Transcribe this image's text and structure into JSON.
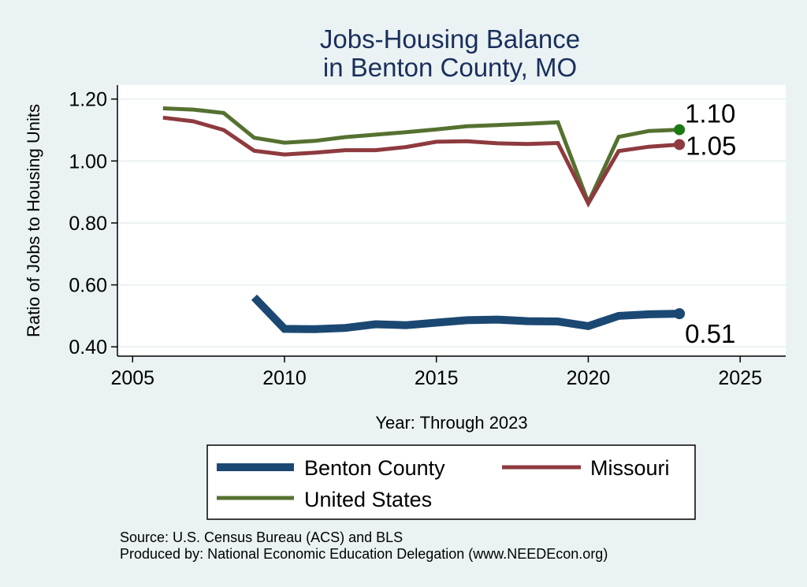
{
  "chart_data": {
    "type": "line",
    "title": [
      "Jobs-Housing Balance",
      "in Benton County, MO"
    ],
    "xlabel": "Year: Through 2023",
    "ylabel": "Ratio of Jobs to Housing Units",
    "xlim": [
      2004.5,
      2026.5
    ],
    "ylim": [
      0.37,
      1.245
    ],
    "xticks": [
      2005,
      2010,
      2015,
      2020,
      2025
    ],
    "xtick_labels": [
      "2005",
      "2010",
      "2015",
      "2020",
      "2025"
    ],
    "yticks": [
      0.4,
      0.6,
      0.8,
      1.0,
      1.2
    ],
    "ytick_labels": [
      "0.40",
      "0.60",
      "0.80",
      "1.00",
      "1.20"
    ],
    "grid": true,
    "legend_position": "bottom",
    "series": [
      {
        "id": "benton",
        "name": "Benton County",
        "color": "#1b4872",
        "line_width": 10,
        "x": [
          2009,
          2010,
          2011,
          2012,
          2013,
          2014,
          2015,
          2016,
          2017,
          2018,
          2019,
          2020,
          2021,
          2022,
          2023
        ],
        "y": [
          0.56,
          0.458,
          0.457,
          0.461,
          0.473,
          0.47,
          0.478,
          0.486,
          0.488,
          0.483,
          0.482,
          0.467,
          0.5,
          0.505,
          0.507
        ],
        "end_label": "0.51"
      },
      {
        "id": "missouri",
        "name": "Missouri",
        "color": "#8e3a3e",
        "line_width": 5,
        "x": [
          2006,
          2007,
          2008,
          2009,
          2010,
          2011,
          2012,
          2013,
          2014,
          2015,
          2016,
          2017,
          2018,
          2019,
          2020,
          2021,
          2022,
          2023
        ],
        "y": [
          1.14,
          1.128,
          1.1,
          1.033,
          1.021,
          1.027,
          1.035,
          1.035,
          1.045,
          1.062,
          1.064,
          1.057,
          1.055,
          1.058,
          0.863,
          1.032,
          1.046,
          1.053
        ],
        "end_label": "1.05"
      },
      {
        "id": "us",
        "name": "United States",
        "color": "#557130",
        "line_width": 5,
        "x": [
          2006,
          2007,
          2008,
          2009,
          2010,
          2011,
          2012,
          2013,
          2014,
          2015,
          2016,
          2017,
          2018,
          2019,
          2020,
          2021,
          2022,
          2023
        ],
        "y": [
          1.17,
          1.166,
          1.155,
          1.075,
          1.059,
          1.065,
          1.077,
          1.085,
          1.093,
          1.102,
          1.112,
          1.116,
          1.12,
          1.125,
          0.866,
          1.078,
          1.097,
          1.101
        ],
        "end_label": "1.10",
        "end_marker_color": "#1c7a12"
      }
    ],
    "notes": [
      "Source: U.S. Census Bureau (ACS) and BLS",
      "Produced by: National Economic Education Delegation (www.NEEDEcon.org)"
    ]
  }
}
